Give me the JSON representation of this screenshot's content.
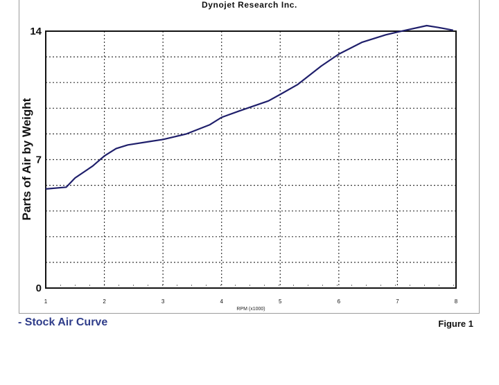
{
  "header": {
    "title": "Dynojet Research Inc."
  },
  "captions": {
    "left": "- Stock Air Curve",
    "right": "Figure 1"
  },
  "chart_data": {
    "type": "line",
    "title": "Dynojet Research Inc.",
    "xlabel": "RPM (x1000)",
    "ylabel": "Parts of Air by Weight",
    "xlim": [
      1,
      8
    ],
    "ylim": [
      0,
      14
    ],
    "x_ticks": [
      1,
      2,
      3,
      4,
      5,
      6,
      7,
      8
    ],
    "y_ticks": [
      0,
      7,
      14
    ],
    "grid": true,
    "colors": {
      "line": "#1f1f6b",
      "grid": "#333333"
    },
    "series": [
      {
        "x": [
          1.0,
          1.35,
          1.5,
          1.8,
          2.0,
          2.2,
          2.4,
          2.8,
          3.0,
          3.4,
          3.8,
          4.0,
          4.3,
          4.8,
          5.0,
          5.3,
          5.7,
          6.0,
          6.4,
          6.8,
          7.0,
          7.5,
          7.7,
          7.95
        ],
        "y": [
          5.4,
          5.5,
          6.0,
          6.65,
          7.2,
          7.6,
          7.8,
          8.0,
          8.1,
          8.4,
          8.9,
          9.3,
          9.65,
          10.2,
          10.55,
          11.1,
          12.1,
          12.75,
          13.4,
          13.8,
          13.95,
          14.3,
          14.2,
          14.05
        ]
      }
    ]
  }
}
